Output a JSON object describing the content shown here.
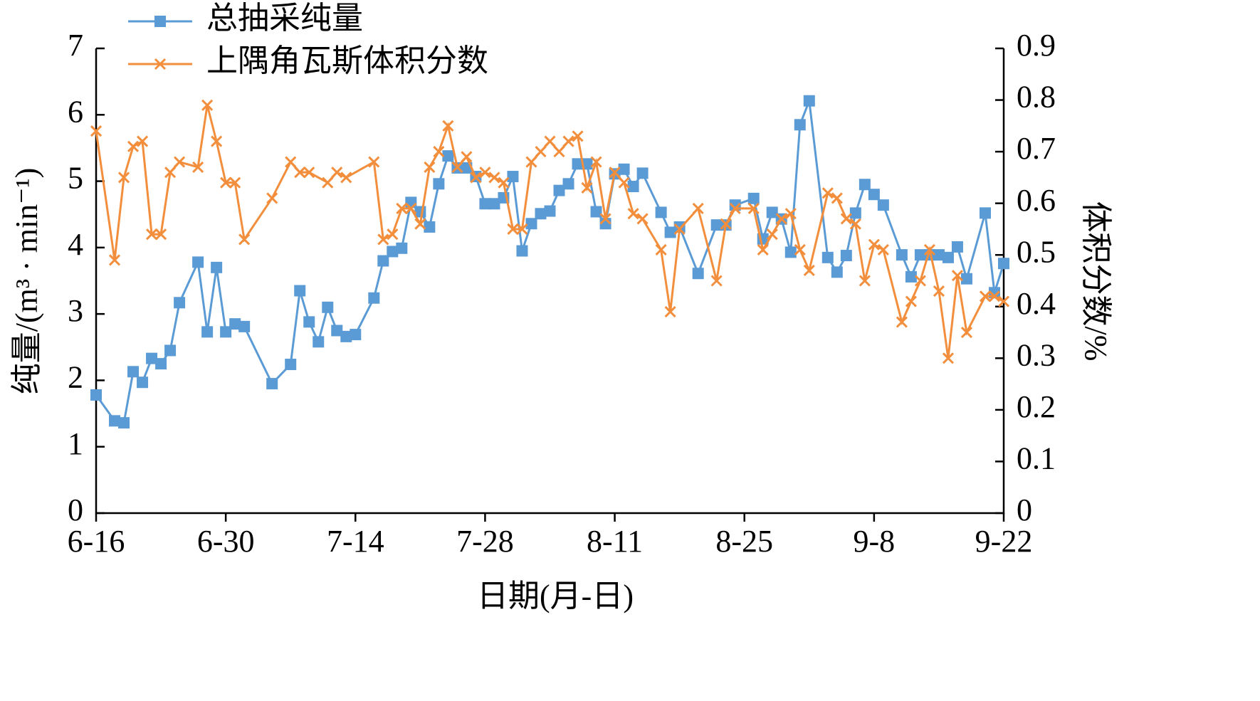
{
  "chart_data": {
    "type": "line",
    "xlabel": "日期(月-日)",
    "ylabel": "纯量/(m³ · min⁻¹)",
    "y2label": "体积分数/%",
    "xlim": [
      "6-16",
      "9-22"
    ],
    "xticks": [
      "6-16",
      "6-30",
      "7-14",
      "7-28",
      "8-11",
      "8-25",
      "9-8",
      "9-22"
    ],
    "ylim": [
      0,
      7
    ],
    "yticks": [
      0,
      1,
      2,
      3,
      4,
      5,
      6,
      7
    ],
    "y2lim": [
      0,
      0.9
    ],
    "y2ticks": [
      0,
      0.1,
      0.2,
      0.3,
      0.4,
      0.5,
      0.6,
      0.7,
      0.8,
      0.9
    ],
    "legend": "upper-left",
    "grid": false,
    "series": [
      {
        "name": "总抽采纯量",
        "color": "#5b9bd5",
        "marker": "square",
        "axis": "y",
        "x": [
          "6-16",
          "6-18",
          "6-19",
          "6-20",
          "6-21",
          "6-22",
          "6-23",
          "6-24",
          "6-25",
          "6-27",
          "6-28",
          "6-29",
          "6-30",
          "7-1",
          "7-2",
          "7-5",
          "7-7",
          "7-8",
          "7-9",
          "7-10",
          "7-11",
          "7-12",
          "7-13",
          "7-14",
          "7-16",
          "7-17",
          "7-18",
          "7-19",
          "7-20",
          "7-21",
          "7-22",
          "7-23",
          "7-24",
          "7-25",
          "7-26",
          "7-27",
          "7-28",
          "7-29",
          "7-30",
          "7-31",
          "8-1",
          "8-2",
          "8-3",
          "8-4",
          "8-5",
          "8-6",
          "8-7",
          "8-8",
          "8-9",
          "8-10",
          "8-11",
          "8-12",
          "8-13",
          "8-14",
          "8-16",
          "8-17",
          "8-18",
          "8-20",
          "8-22",
          "8-23",
          "8-24",
          "8-26",
          "8-27",
          "8-28",
          "8-29",
          "8-30",
          "8-31",
          "9-1",
          "9-3",
          "9-4",
          "9-5",
          "9-6",
          "9-7",
          "9-8",
          "9-9",
          "9-11",
          "9-12",
          "9-13",
          "9-14",
          "9-15",
          "9-16",
          "9-17",
          "9-18",
          "9-20",
          "9-21",
          "9-22"
        ],
        "values": [
          1.78,
          1.39,
          1.36,
          2.13,
          1.97,
          2.33,
          2.25,
          2.45,
          3.17,
          3.78,
          2.73,
          3.7,
          2.73,
          2.85,
          2.81,
          1.95,
          2.24,
          3.35,
          2.88,
          2.58,
          3.1,
          2.75,
          2.66,
          2.69,
          3.24,
          3.8,
          3.94,
          3.99,
          4.68,
          4.54,
          4.31,
          4.96,
          5.38,
          5.2,
          5.2,
          5.07,
          4.66,
          4.66,
          4.75,
          5.07,
          3.95,
          4.36,
          4.51,
          4.55,
          4.86,
          4.96,
          5.26,
          5.26,
          4.54,
          4.36,
          5.11,
          5.18,
          4.92,
          5.12,
          4.53,
          4.23,
          4.31,
          3.61,
          4.34,
          4.34,
          4.64,
          4.74,
          4.13,
          4.53,
          4.43,
          3.93,
          5.85,
          6.21,
          3.85,
          3.63,
          3.88,
          4.52,
          4.95,
          4.8,
          4.64,
          3.89,
          3.56,
          3.89,
          3.89,
          3.89,
          3.85,
          4.01,
          3.53,
          4.52,
          3.32,
          3.76
        ]
      },
      {
        "name": "上隅角瓦斯体积分数",
        "color": "#f28e3c",
        "marker": "x",
        "axis": "y2",
        "x": [
          "6-16",
          "6-18",
          "6-19",
          "6-20",
          "6-21",
          "6-22",
          "6-23",
          "6-24",
          "6-25",
          "6-27",
          "6-28",
          "6-29",
          "6-30",
          "7-1",
          "7-2",
          "7-5",
          "7-7",
          "7-8",
          "7-9",
          "7-11",
          "7-12",
          "7-13",
          "7-16",
          "7-17",
          "7-18",
          "7-19",
          "7-20",
          "7-21",
          "7-22",
          "7-23",
          "7-24",
          "7-25",
          "7-26",
          "7-27",
          "7-28",
          "7-29",
          "7-30",
          "7-31",
          "8-1",
          "8-2",
          "8-3",
          "8-4",
          "8-5",
          "8-6",
          "8-7",
          "8-8",
          "8-9",
          "8-10",
          "8-11",
          "8-12",
          "8-13",
          "8-14",
          "8-16",
          "8-17",
          "8-18",
          "8-20",
          "8-22",
          "8-23",
          "8-24",
          "8-26",
          "8-27",
          "8-28",
          "8-29",
          "8-30",
          "8-31",
          "9-1",
          "9-3",
          "9-4",
          "9-5",
          "9-6",
          "9-7",
          "9-8",
          "9-9",
          "9-11",
          "9-12",
          "9-13",
          "9-14",
          "9-15",
          "9-16",
          "9-17",
          "9-18",
          "9-20",
          "9-21",
          "9-22"
        ],
        "values": [
          0.74,
          0.49,
          0.65,
          0.71,
          0.72,
          0.54,
          0.54,
          0.66,
          0.68,
          0.67,
          0.79,
          0.72,
          0.64,
          0.64,
          0.53,
          0.61,
          0.68,
          0.66,
          0.66,
          0.64,
          0.66,
          0.65,
          0.68,
          0.53,
          0.54,
          0.59,
          0.59,
          0.56,
          0.67,
          0.7,
          0.75,
          0.67,
          0.69,
          0.65,
          0.66,
          0.65,
          0.64,
          0.55,
          0.55,
          0.68,
          0.7,
          0.72,
          0.7,
          0.72,
          0.73,
          0.63,
          0.68,
          0.57,
          0.66,
          0.64,
          0.58,
          0.57,
          0.51,
          0.39,
          0.55,
          0.59,
          0.45,
          0.56,
          0.59,
          0.59,
          0.51,
          0.54,
          0.57,
          0.58,
          0.51,
          0.47,
          0.62,
          0.61,
          0.57,
          0.56,
          0.45,
          0.52,
          0.51,
          0.37,
          0.41,
          0.45,
          0.51,
          0.43,
          0.3,
          0.46,
          0.35,
          0.42,
          0.42,
          0.41
        ]
      }
    ]
  }
}
